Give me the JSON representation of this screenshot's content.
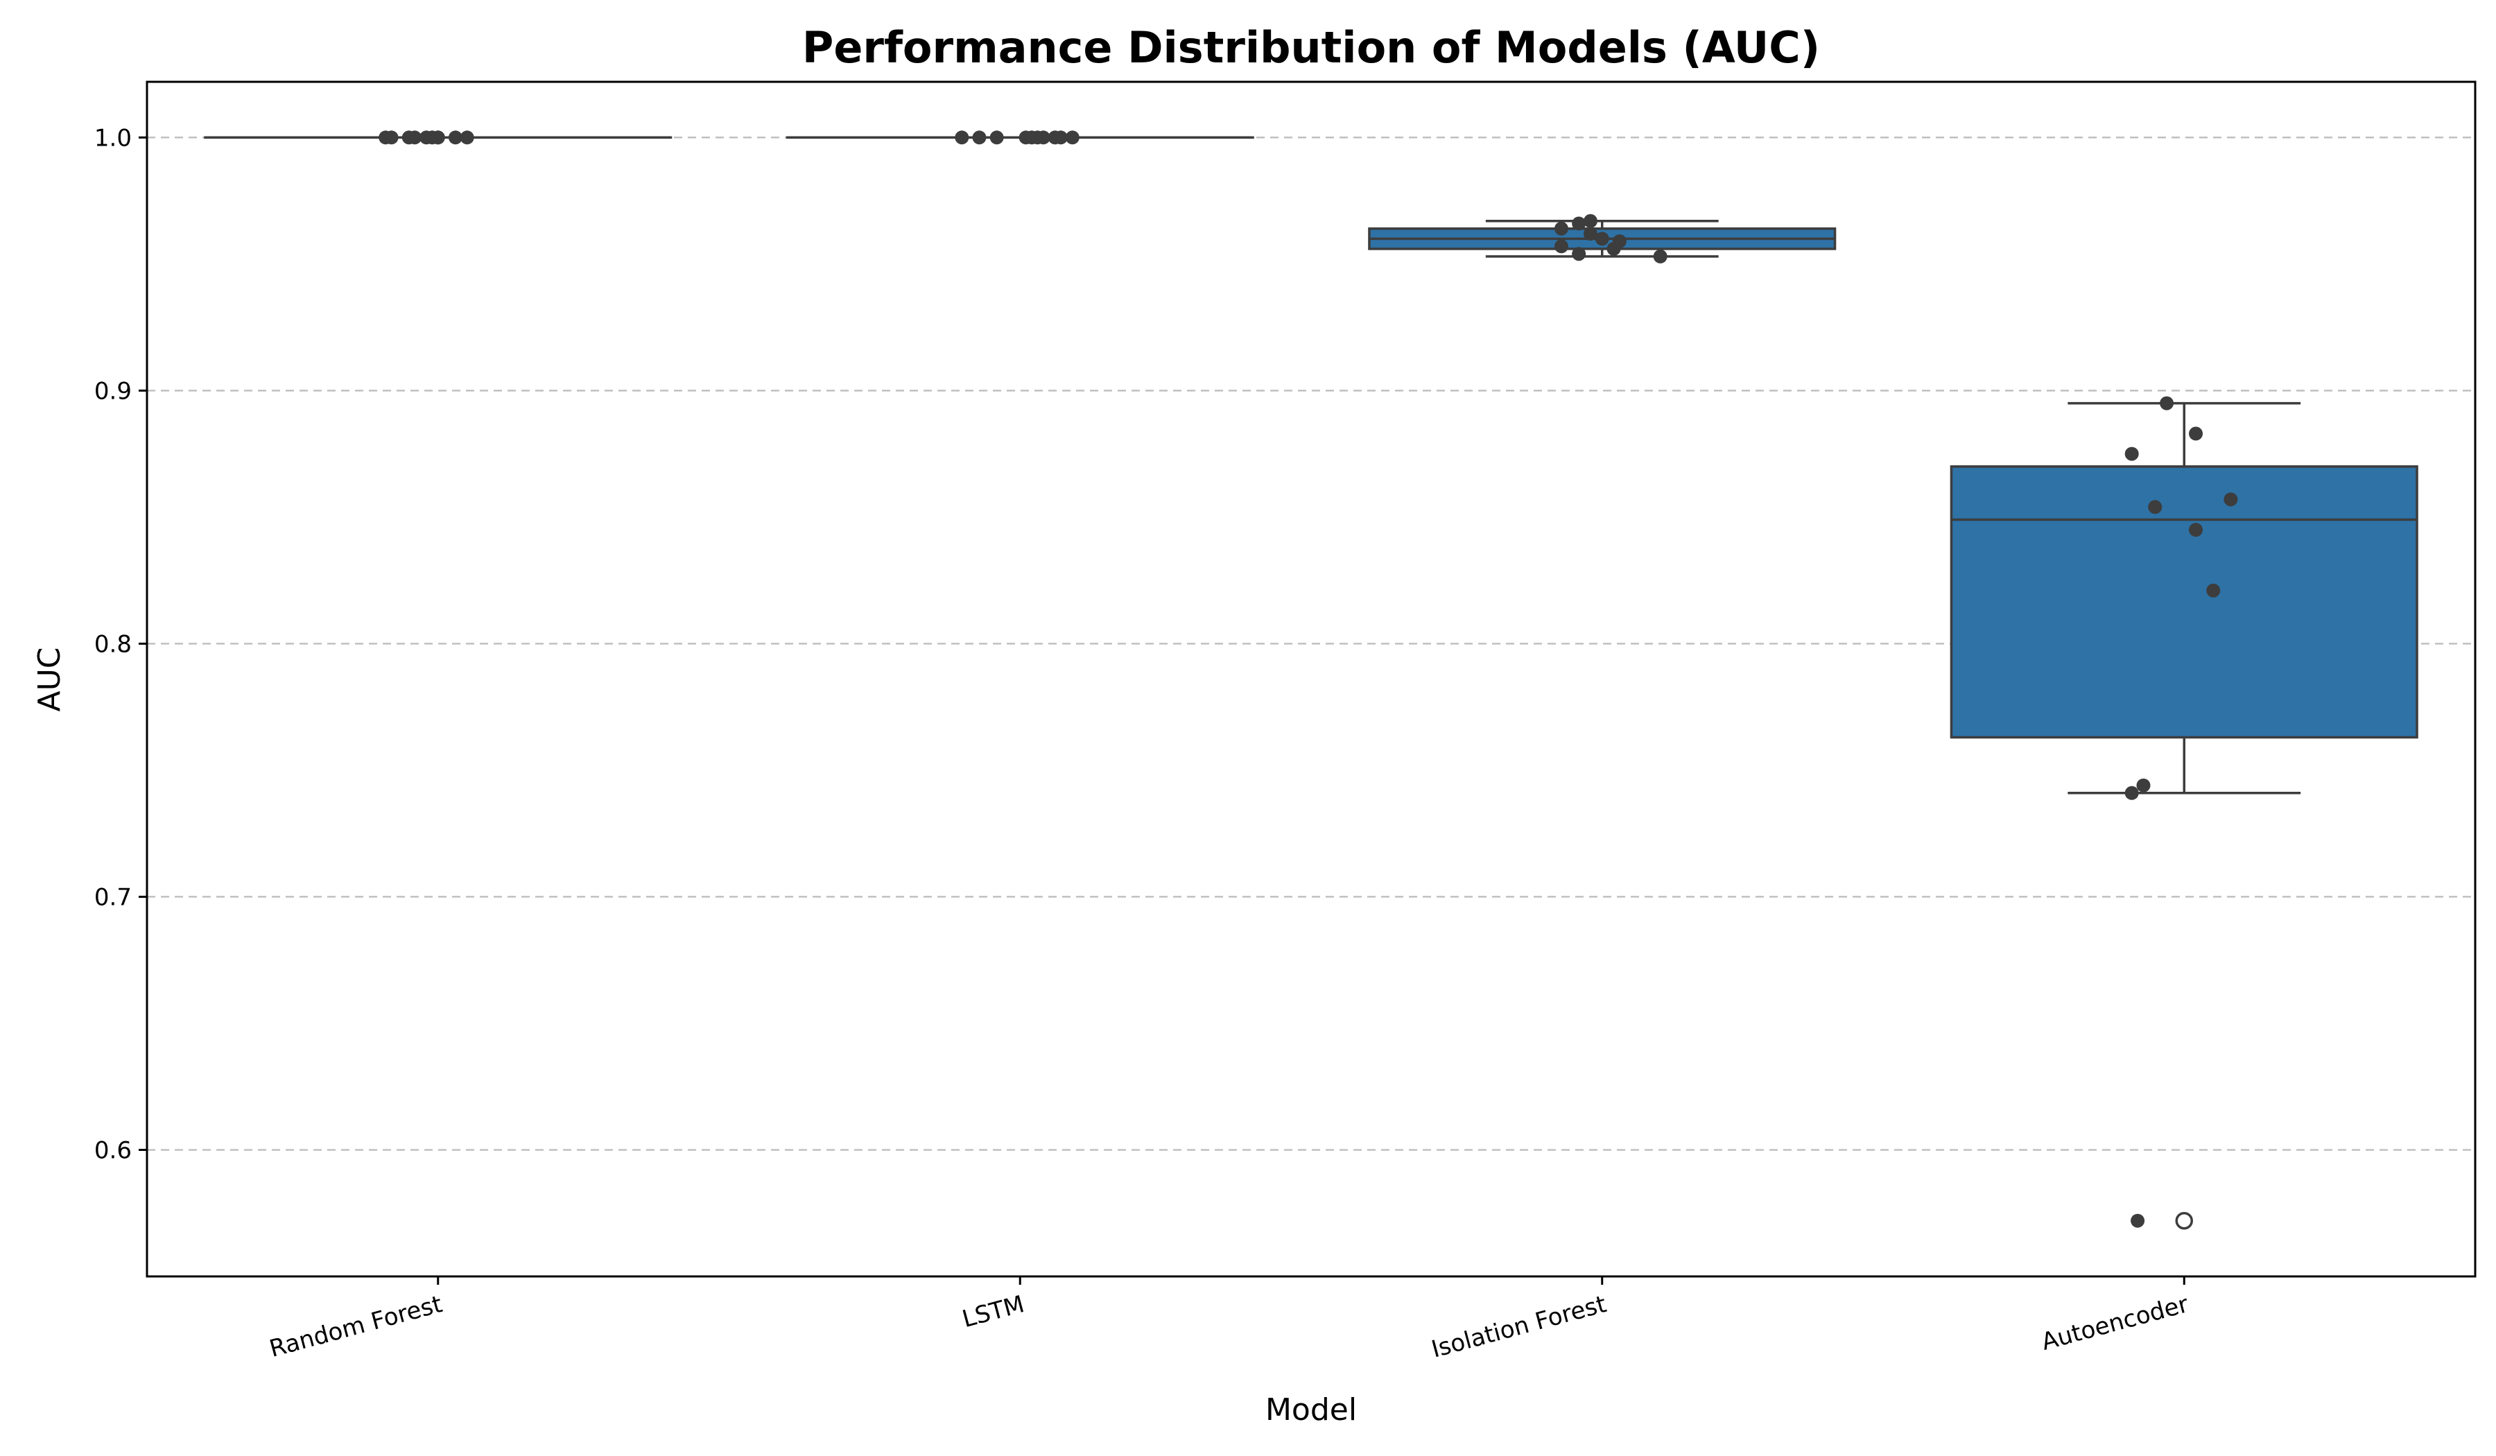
{
  "chart_data": {
    "type": "box",
    "title": "Performance Distribution of Models (AUC)",
    "xlabel": "Model",
    "ylabel": "AUC",
    "ylim": [
      0.55,
      1.022
    ],
    "yticks": [
      0.6,
      0.7,
      0.8,
      0.9,
      1.0
    ],
    "ytick_labels": [
      "0.6",
      "0.7",
      "0.8",
      "0.9",
      "1.0"
    ],
    "grid": "y-dashed",
    "box_color": "#2e72a6",
    "categories": [
      "Random Forest",
      "LSTM",
      "Isolation Forest",
      "Autoencoder"
    ],
    "boxes": [
      {
        "name": "Random Forest",
        "whislo": 1.0,
        "q1": 1.0,
        "med": 1.0,
        "q3": 1.0,
        "whishi": 1.0,
        "fliers": []
      },
      {
        "name": "LSTM",
        "whislo": 1.0,
        "q1": 1.0,
        "med": 1.0,
        "q3": 1.0,
        "whishi": 1.0,
        "fliers": []
      },
      {
        "name": "Isolation Forest",
        "whislo": 0.953,
        "q1": 0.956,
        "med": 0.96,
        "q3": 0.964,
        "whishi": 0.967,
        "fliers": []
      },
      {
        "name": "Autoencoder",
        "whislo": 0.741,
        "q1": 0.763,
        "med": 0.849,
        "q3": 0.87,
        "whishi": 0.895,
        "fliers": [
          0.572
        ]
      }
    ],
    "points": [
      {
        "name": "Random Forest",
        "values": [
          1.0,
          1.0,
          1.0,
          1.0,
          1.0,
          1.0,
          1.0,
          1.0,
          1.0,
          1.0
        ],
        "jitter": [
          -0.09,
          -0.08,
          -0.05,
          -0.04,
          -0.02,
          -0.01,
          0.0,
          0.03,
          0.05,
          0.0
        ]
      },
      {
        "name": "LSTM",
        "values": [
          1.0,
          1.0,
          1.0,
          1.0,
          1.0,
          1.0,
          1.0,
          1.0,
          1.0,
          1.0
        ],
        "jitter": [
          -0.1,
          -0.07,
          -0.04,
          0.01,
          0.02,
          0.03,
          0.04,
          0.06,
          0.07,
          0.09
        ]
      },
      {
        "name": "Isolation Forest",
        "values": [
          0.966,
          0.967,
          0.964,
          0.962,
          0.96,
          0.959,
          0.957,
          0.956,
          0.954,
          0.953
        ],
        "jitter": [
          -0.04,
          -0.02,
          -0.07,
          -0.02,
          0.0,
          0.03,
          -0.07,
          0.02,
          -0.04,
          0.1
        ]
      },
      {
        "name": "Autoencoder",
        "values": [
          0.895,
          0.883,
          0.875,
          0.857,
          0.854,
          0.845,
          0.821,
          0.744,
          0.741,
          0.572
        ],
        "jitter": [
          -0.03,
          0.02,
          -0.09,
          0.08,
          -0.05,
          0.02,
          0.05,
          -0.07,
          -0.09,
          -0.08
        ]
      }
    ]
  }
}
